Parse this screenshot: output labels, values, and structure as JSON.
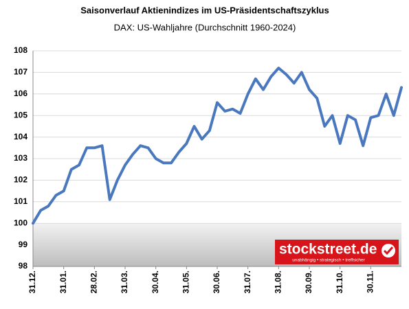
{
  "chart_data": {
    "type": "line",
    "title": "Saisonverlauf Aktienindizes im US-Präsidentschaftszyklus",
    "subtitle": "DAX: US-Wahljahre (Durchschnitt 1960-2024)",
    "logo": "stockstreet.de",
    "logo_tagline": "unabhängig • strategisch • treffsicher",
    "categories": [
      "31.12.",
      null,
      null,
      null,
      "31.01.",
      null,
      null,
      null,
      "28.02.",
      null,
      null,
      null,
      "31.03.",
      null,
      null,
      null,
      "30.04.",
      null,
      null,
      null,
      "31.05.",
      null,
      null,
      null,
      "30.06.",
      null,
      null,
      null,
      "31.07.",
      null,
      null,
      null,
      "31.08.",
      null,
      null,
      null,
      "30.09.",
      null,
      null,
      null,
      "31.10.",
      null,
      null,
      null,
      "30.11.",
      null,
      null,
      null,
      null
    ],
    "values": [
      100.0,
      100.6,
      100.8,
      101.3,
      101.5,
      102.5,
      102.7,
      103.5,
      103.5,
      103.6,
      101.1,
      102.0,
      102.7,
      103.2,
      103.6,
      103.5,
      103.0,
      102.8,
      102.8,
      103.3,
      103.7,
      104.5,
      103.9,
      104.3,
      105.6,
      105.2,
      105.3,
      105.1,
      106.0,
      106.7,
      106.2,
      106.8,
      107.2,
      106.9,
      106.5,
      107.0,
      106.2,
      105.8,
      104.5,
      105.0,
      103.7,
      105.0,
      104.8,
      103.6,
      104.9,
      105.0,
      106.0,
      105.0,
      106.3
    ],
    "color": "#4a78bf",
    "ylim": [
      98,
      108
    ],
    "yticks": [
      98,
      99,
      100,
      101,
      102,
      103,
      104,
      105,
      106,
      107,
      108
    ],
    "grid": true
  }
}
